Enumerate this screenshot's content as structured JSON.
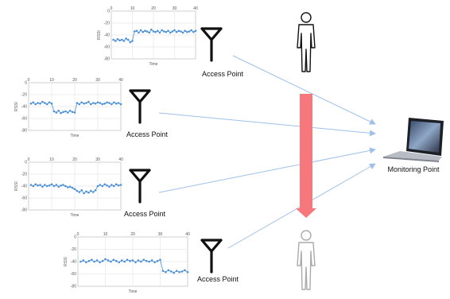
{
  "diagram": {
    "access_point_label": "Access Point",
    "monitoring_label": "Monitoring Point",
    "person_color_top": "#111111",
    "person_color_bottom": "#aaaaaa",
    "movement_arrow_color": "#f6787c",
    "link_line_color": "#9ec0ea",
    "series_color": "#4a90d9"
  },
  "chart_data": [
    {
      "type": "scatter",
      "title": "",
      "xlabel": "Time",
      "ylabel": "RSSI",
      "xlim": [
        0,
        40
      ],
      "ylim": [
        -80,
        0
      ],
      "xticks": [
        "0",
        "10",
        "20",
        "30",
        "40"
      ],
      "yticks": [
        "0",
        "-20",
        "-40",
        "-60",
        "-80"
      ],
      "series": [
        {
          "x": [
            1,
            2,
            3,
            4,
            5,
            6,
            7,
            8,
            9,
            10,
            11,
            12,
            13,
            14,
            15,
            16,
            17,
            18,
            19,
            20,
            21,
            22,
            23,
            24,
            25,
            26,
            27,
            28,
            29,
            30,
            31,
            32,
            33,
            34,
            35,
            36,
            37,
            38,
            39,
            40
          ],
          "values": [
            -48,
            -50,
            -47,
            -49,
            -48,
            -50,
            -46,
            -48,
            -52,
            -50,
            -34,
            -33,
            -36,
            -32,
            -35,
            -33,
            -34,
            -36,
            -31,
            -34,
            -35,
            -33,
            -36,
            -32,
            -34,
            -35,
            -33,
            -36,
            -34,
            -32,
            -35,
            -33,
            -34,
            -36,
            -33,
            -35,
            -34,
            -32,
            -35,
            -33
          ]
        }
      ]
    },
    {
      "type": "scatter",
      "title": "",
      "xlabel": "Time",
      "ylabel": "RSSI",
      "xlim": [
        0,
        40
      ],
      "ylim": [
        -80,
        0
      ],
      "xticks": [
        "0",
        "10",
        "20",
        "30",
        "40"
      ],
      "yticks": [
        "0",
        "-20",
        "-40",
        "-60",
        "-80"
      ],
      "series": [
        {
          "x": [
            1,
            2,
            3,
            4,
            5,
            6,
            7,
            8,
            9,
            10,
            11,
            12,
            13,
            14,
            15,
            16,
            17,
            18,
            19,
            20,
            21,
            22,
            23,
            24,
            25,
            26,
            27,
            28,
            29,
            30,
            31,
            32,
            33,
            34,
            35,
            36,
            37,
            38,
            39,
            40
          ],
          "values": [
            -35,
            -33,
            -36,
            -34,
            -35,
            -32,
            -34,
            -36,
            -33,
            -35,
            -48,
            -50,
            -47,
            -51,
            -49,
            -48,
            -50,
            -47,
            -49,
            -50,
            -34,
            -36,
            -33,
            -35,
            -34,
            -32,
            -36,
            -34,
            -35,
            -33,
            -34,
            -36,
            -35,
            -33,
            -34,
            -36,
            -33,
            -35,
            -34,
            -36
          ]
        }
      ]
    },
    {
      "type": "scatter",
      "title": "",
      "xlabel": "Time",
      "ylabel": "RSSI",
      "xlim": [
        0,
        40
      ],
      "ylim": [
        -80,
        0
      ],
      "xticks": [
        "0",
        "10",
        "20",
        "30",
        "40"
      ],
      "yticks": [
        "0",
        "-20",
        "-40",
        "-60",
        "-80"
      ],
      "series": [
        {
          "x": [
            1,
            2,
            3,
            4,
            5,
            6,
            7,
            8,
            9,
            10,
            11,
            12,
            13,
            14,
            15,
            16,
            17,
            18,
            19,
            20,
            21,
            22,
            23,
            24,
            25,
            26,
            27,
            28,
            29,
            30,
            31,
            32,
            33,
            34,
            35,
            36,
            37,
            38,
            39,
            40
          ],
          "values": [
            -38,
            -40,
            -37,
            -39,
            -38,
            -41,
            -38,
            -40,
            -39,
            -37,
            -40,
            -38,
            -41,
            -39,
            -38,
            -40,
            -42,
            -41,
            -43,
            -45,
            -48,
            -50,
            -47,
            -52,
            -49,
            -51,
            -48,
            -50,
            -47,
            -40,
            -38,
            -40,
            -37,
            -39,
            -41,
            -38,
            -40,
            -37,
            -39,
            -38
          ]
        }
      ]
    },
    {
      "type": "scatter",
      "title": "",
      "xlabel": "Time",
      "ylabel": "RSSI",
      "xlim": [
        0,
        40
      ],
      "ylim": [
        -80,
        0
      ],
      "xticks": [
        "0",
        "10",
        "20",
        "30",
        "40"
      ],
      "yticks": [
        "0",
        "-20",
        "-40",
        "-60",
        "-80"
      ],
      "series": [
        {
          "x": [
            1,
            2,
            3,
            4,
            5,
            6,
            7,
            8,
            9,
            10,
            11,
            12,
            13,
            14,
            15,
            16,
            17,
            18,
            19,
            20,
            21,
            22,
            23,
            24,
            25,
            26,
            27,
            28,
            29,
            30,
            31,
            32,
            33,
            34,
            35,
            36,
            37,
            38,
            39,
            40
          ],
          "values": [
            -40,
            -38,
            -41,
            -39,
            -37,
            -40,
            -38,
            -41,
            -39,
            -36,
            -38,
            -40,
            -37,
            -39,
            -41,
            -38,
            -40,
            -37,
            -39,
            -38,
            -41,
            -38,
            -40,
            -37,
            -39,
            -40,
            -38,
            -41,
            -39,
            -37,
            -55,
            -57,
            -54,
            -56,
            -58,
            -55,
            -57,
            -56,
            -54,
            -57
          ]
        }
      ]
    }
  ]
}
